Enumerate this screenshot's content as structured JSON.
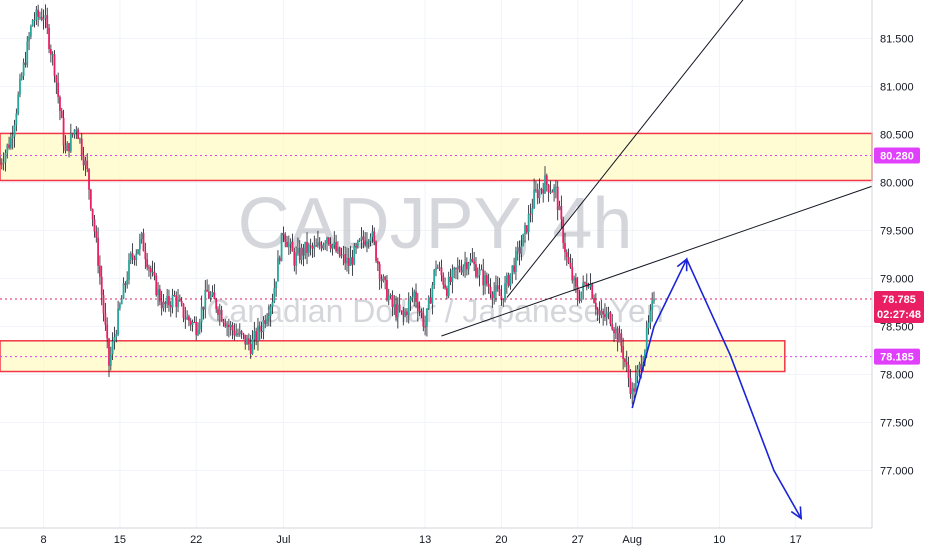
{
  "chart_data": {
    "type": "candlestick",
    "symbol_watermark": "CADJPY, 4h",
    "name_watermark": "Canadian Dollar / Japanese Yen",
    "y_ticks": [
      "81.500",
      "81.000",
      "80.500",
      "80.000",
      "79.500",
      "79.000",
      "78.500",
      "78.000",
      "77.500",
      "77.000"
    ],
    "y_tick_values": [
      81.5,
      81.0,
      80.5,
      80.0,
      79.5,
      79.0,
      78.5,
      78.0,
      77.5,
      77.0
    ],
    "x_ticks": [
      "8",
      "15",
      "22",
      "Jul",
      "13",
      "20",
      "27",
      "Aug",
      "10",
      "17"
    ],
    "x_tick_days": [
      8,
      15,
      22,
      30,
      43,
      50,
      57,
      62,
      70,
      77
    ],
    "ylim": [
      76.4,
      81.9
    ],
    "x_range_days": [
      4,
      84
    ],
    "last_price": "78.785",
    "countdown": "02:27:48",
    "levels": [
      {
        "label": "80.280",
        "value": 80.28,
        "color": "#e040fb"
      },
      {
        "label": "78.185",
        "value": 78.185,
        "color": "#e040fb"
      }
    ],
    "zones": [
      {
        "low": 80.02,
        "high": 80.51,
        "start_day": 4,
        "end_day": 84
      },
      {
        "low": 78.03,
        "high": 78.35,
        "start_day": 4,
        "end_day": 76
      }
    ],
    "price_path": [
      [
        4,
        80.2
      ],
      [
        5,
        80.45
      ],
      [
        6,
        81.1
      ],
      [
        7,
        81.7
      ],
      [
        8,
        81.75
      ],
      [
        9,
        81.2
      ],
      [
        10,
        80.3
      ],
      [
        11,
        80.6
      ],
      [
        12,
        80.1
      ],
      [
        13,
        79.2
      ],
      [
        14,
        78.1
      ],
      [
        15,
        78.7
      ],
      [
        16,
        79.2
      ],
      [
        17,
        79.4
      ],
      [
        18,
        79.0
      ],
      [
        19,
        78.7
      ],
      [
        20,
        78.8
      ],
      [
        21,
        78.6
      ],
      [
        22,
        78.5
      ],
      [
        23,
        78.85
      ],
      [
        24,
        78.7
      ],
      [
        25,
        78.5
      ],
      [
        26,
        78.4
      ],
      [
        27,
        78.3
      ],
      [
        28,
        78.5
      ],
      [
        29,
        78.8
      ],
      [
        30,
        79.5
      ],
      [
        31,
        79.2
      ],
      [
        32,
        79.3
      ],
      [
        33,
        79.3
      ],
      [
        34,
        79.45
      ],
      [
        35,
        79.25
      ],
      [
        36,
        79.15
      ],
      [
        37,
        79.35
      ],
      [
        38,
        79.5
      ],
      [
        39,
        79.0
      ],
      [
        40,
        78.7
      ],
      [
        41,
        78.6
      ],
      [
        42,
        78.85
      ],
      [
        43,
        78.5
      ],
      [
        44,
        79.15
      ],
      [
        45,
        78.9
      ],
      [
        46,
        79.1
      ],
      [
        47,
        79.2
      ],
      [
        48,
        79.05
      ],
      [
        49,
        78.9
      ],
      [
        50,
        78.8
      ],
      [
        51,
        79.1
      ],
      [
        52,
        79.4
      ],
      [
        53,
        79.85
      ],
      [
        54,
        80.0
      ],
      [
        55,
        79.9
      ],
      [
        56,
        79.2
      ],
      [
        57,
        78.8
      ],
      [
        58,
        79.0
      ],
      [
        59,
        78.6
      ],
      [
        60,
        78.6
      ],
      [
        61,
        78.3
      ],
      [
        62,
        77.8
      ],
      [
        63,
        78.2
      ],
      [
        64,
        78.785
      ]
    ],
    "forecast_path": [
      [
        62,
        77.65
      ],
      [
        64,
        78.5
      ],
      [
        67,
        79.2
      ],
      [
        71,
        78.2
      ],
      [
        75,
        77.0
      ],
      [
        77.5,
        76.5
      ]
    ],
    "trendlines": [
      {
        "x1": 44.5,
        "y1": 78.4,
        "x2": 84,
        "y2": 79.96
      },
      {
        "x1": 50.5,
        "y1": 78.8,
        "x2": 72.5,
        "y2": 81.95
      }
    ]
  }
}
